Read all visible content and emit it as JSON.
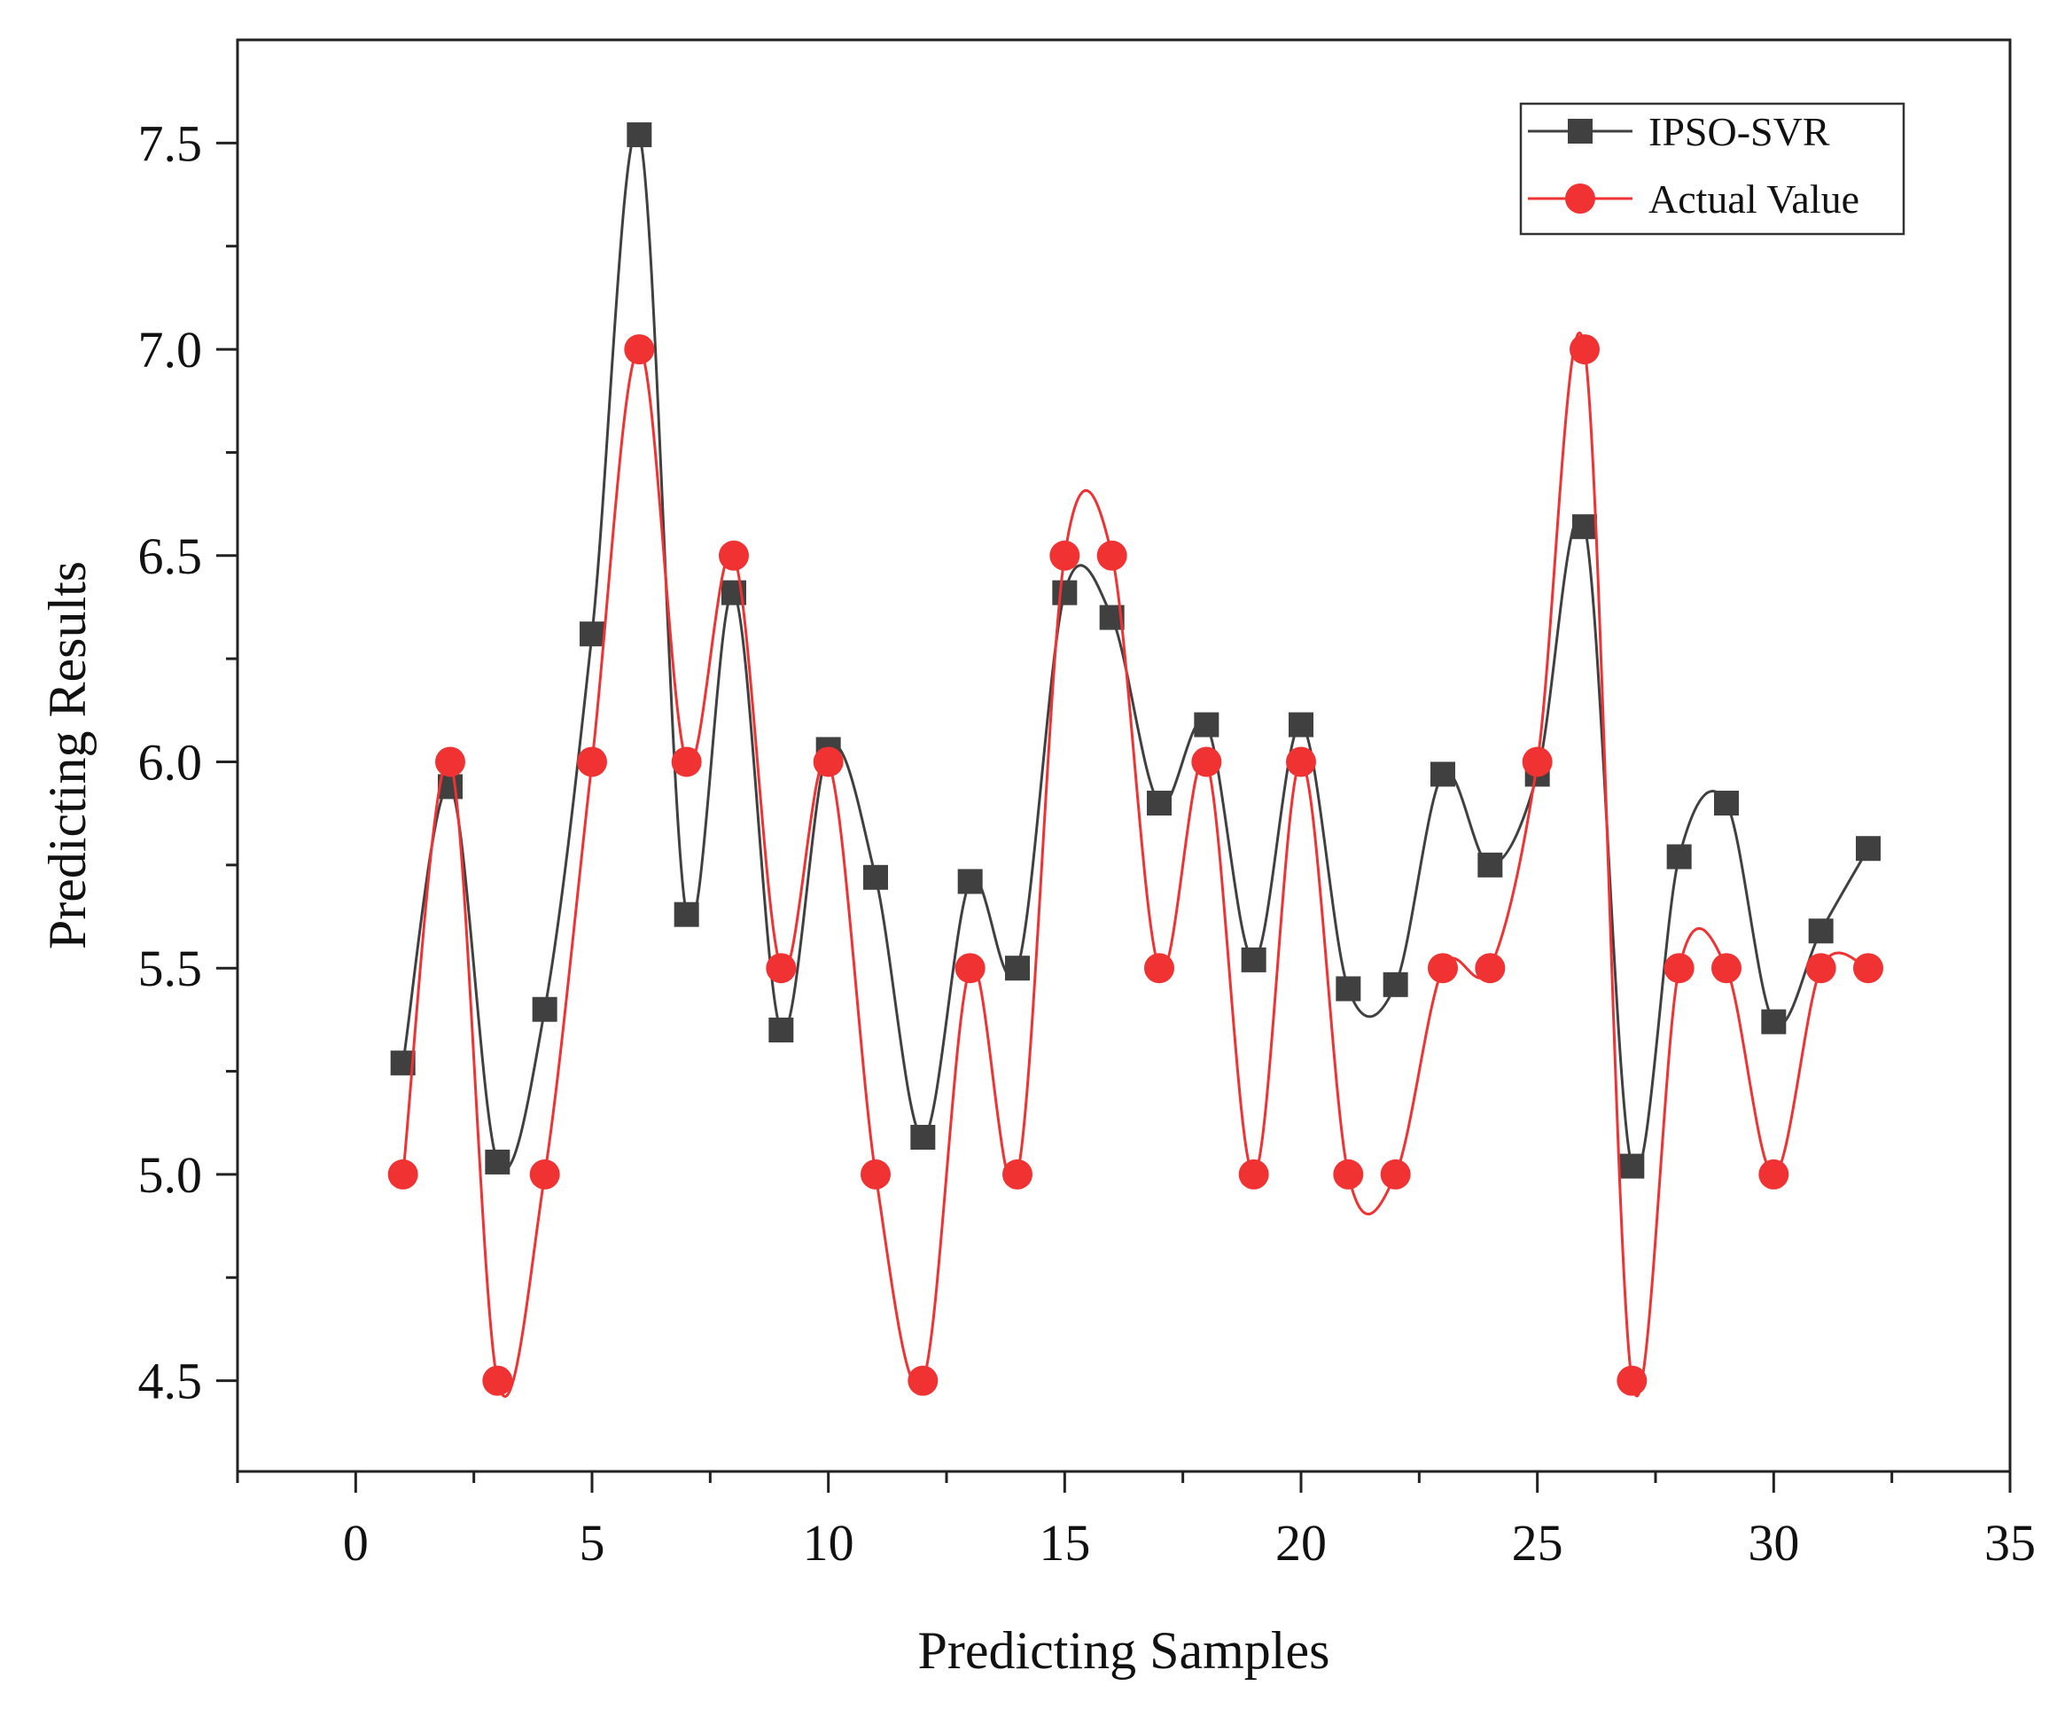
{
  "chart_data": {
    "type": "line",
    "title": "",
    "xlabel": "Predicting Samples",
    "ylabel": "Predicting Results",
    "xlim": [
      -2.5,
      35
    ],
    "ylim": [
      4.28,
      7.75
    ],
    "xticks": [
      0,
      5,
      10,
      15,
      20,
      25,
      30,
      35
    ],
    "xtick_labels": [
      "0",
      "5",
      "10",
      "15",
      "20",
      "25",
      "30",
      "35"
    ],
    "yticks": [
      4.5,
      5.0,
      5.5,
      6.0,
      6.5,
      7.0,
      7.5
    ],
    "ytick_labels": [
      "4.5",
      "5.0",
      "5.5",
      "6.0",
      "6.5",
      "7.0",
      "7.5"
    ],
    "legend_position": "top-right",
    "x": [
      1,
      2,
      3,
      4,
      5,
      6,
      7,
      8,
      9,
      10,
      11,
      12,
      13,
      14,
      15,
      16,
      17,
      18,
      19,
      20,
      21,
      22,
      23,
      24,
      25,
      26,
      27,
      28,
      29,
      30,
      31,
      32
    ],
    "series": [
      {
        "name": "IPSO-SVR",
        "marker": "square",
        "color": "#404040",
        "values": [
          5.27,
          5.94,
          5.03,
          5.4,
          6.31,
          7.52,
          5.63,
          6.41,
          5.35,
          6.03,
          5.72,
          5.09,
          5.71,
          5.5,
          6.41,
          6.35,
          5.9,
          6.09,
          5.52,
          6.09,
          5.45,
          5.46,
          5.97,
          5.75,
          5.97,
          6.57,
          5.02,
          5.77,
          5.9,
          5.37,
          5.59,
          5.79
        ]
      },
      {
        "name": "Actual Value",
        "marker": "circle",
        "color": "#f03232",
        "values": [
          5.0,
          6.0,
          4.5,
          5.0,
          6.0,
          7.0,
          6.0,
          6.5,
          5.5,
          6.0,
          5.0,
          4.5,
          5.5,
          5.0,
          6.5,
          6.5,
          5.5,
          6.0,
          5.0,
          6.0,
          5.0,
          5.0,
          5.5,
          5.5,
          6.0,
          7.0,
          4.5,
          5.5,
          5.5,
          5.0,
          5.5,
          5.5
        ]
      }
    ]
  }
}
